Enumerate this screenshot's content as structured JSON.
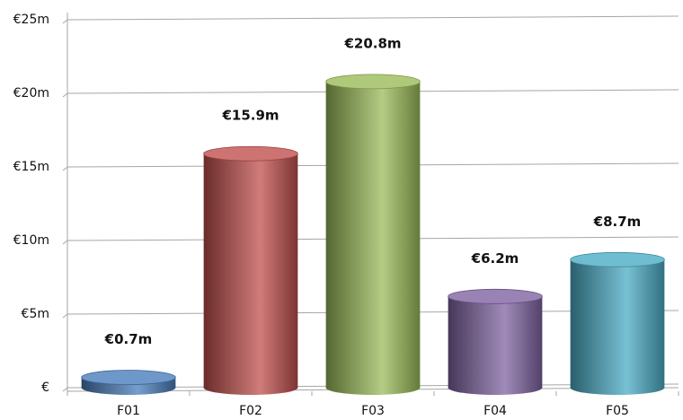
{
  "chart_data": {
    "type": "bar",
    "categories": [
      "F01",
      "F02",
      "F03",
      "F04",
      "F05"
    ],
    "values": [
      0.7,
      15.9,
      20.8,
      6.2,
      8.7
    ],
    "value_labels": [
      "€0.7m",
      "€15.9m",
      "€20.8m",
      "€6.2m",
      "€8.7m"
    ],
    "colors": [
      "#4a7ebb",
      "#c0504d",
      "#9bbb59",
      "#8064a2",
      "#4bacc6"
    ],
    "ylim": [
      0,
      25
    ],
    "yticks": [
      {
        "value": 0,
        "label": "€"
      },
      {
        "value": 5,
        "label": "€5m"
      },
      {
        "value": 10,
        "label": "€10m"
      },
      {
        "value": 15,
        "label": "€15m"
      },
      {
        "value": 20,
        "label": "€20m"
      },
      {
        "value": 25,
        "label": "€25m"
      }
    ],
    "grid": true
  }
}
